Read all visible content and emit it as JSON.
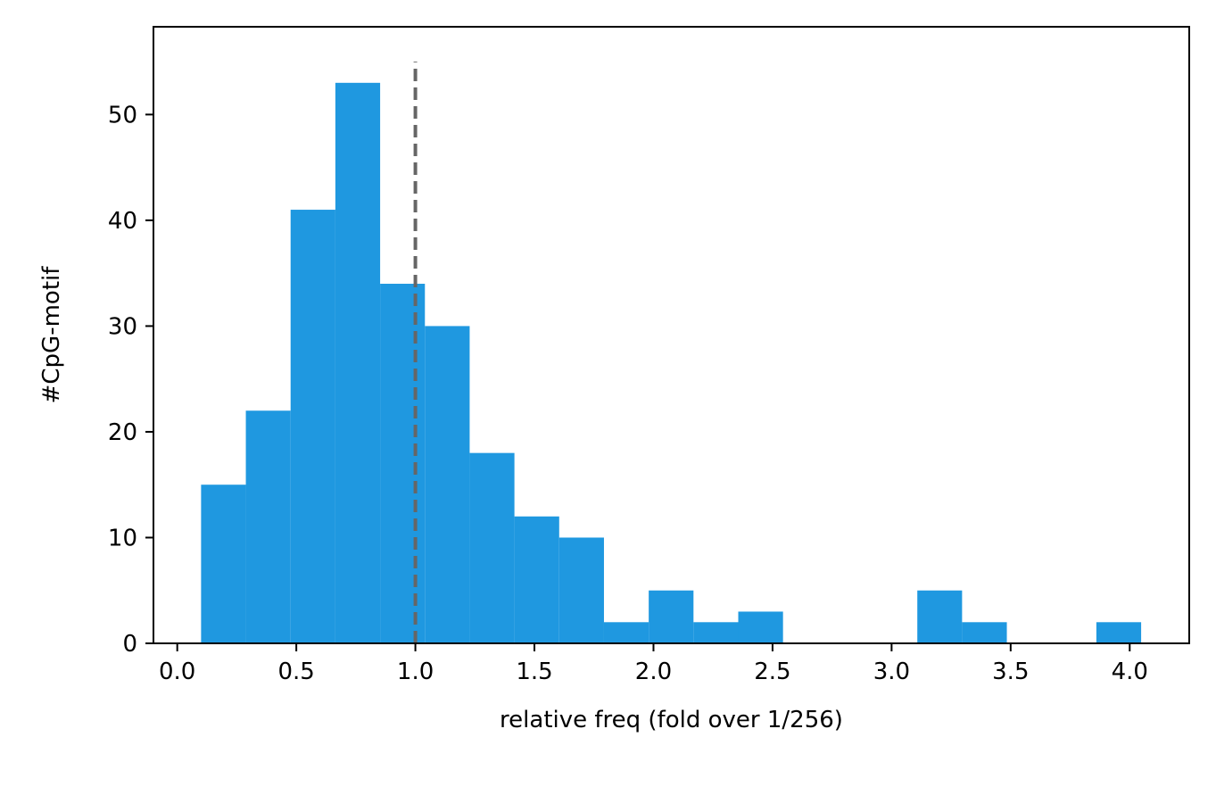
{
  "chart_data": {
    "type": "bar",
    "title": "",
    "xlabel": "relative freq (fold over 1/256)",
    "ylabel": "#CpG-motif",
    "xlim": [
      -0.1,
      4.25
    ],
    "ylim": [
      0,
      58.3
    ],
    "bin_edges": [
      0.1,
      0.288,
      0.476,
      0.664,
      0.852,
      1.04,
      1.228,
      1.416,
      1.604,
      1.792,
      1.98,
      2.168,
      2.356,
      2.544,
      2.732,
      2.92,
      3.108,
      3.296,
      3.484,
      3.672,
      3.86,
      4.048
    ],
    "values": [
      15,
      22,
      41,
      53,
      34,
      30,
      18,
      12,
      10,
      2,
      5,
      2,
      3,
      0,
      0,
      0,
      5,
      2,
      0,
      0,
      2
    ],
    "bar_color": "#1f98e0",
    "reference_line": {
      "x": 1.0,
      "ymax": 55,
      "style": "dashed",
      "color": "#666666"
    },
    "x_ticks": [
      0.0,
      0.5,
      1.0,
      1.5,
      2.0,
      2.5,
      3.0,
      3.5,
      4.0
    ],
    "x_tick_labels": [
      "0.0",
      "0.5",
      "1.0",
      "1.5",
      "2.0",
      "2.5",
      "3.0",
      "3.5",
      "4.0"
    ],
    "y_ticks": [
      0,
      10,
      20,
      30,
      40,
      50
    ],
    "y_tick_labels": [
      "0",
      "10",
      "20",
      "30",
      "40",
      "50"
    ],
    "grid": false,
    "legend": "none"
  }
}
